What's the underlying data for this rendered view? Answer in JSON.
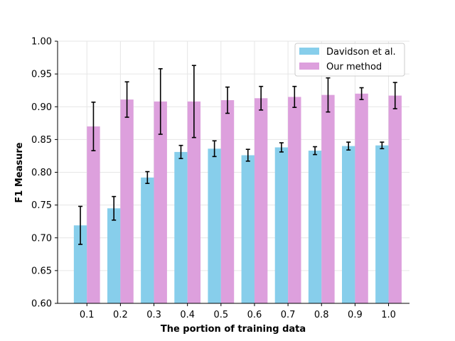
{
  "chart_data": {
    "type": "bar",
    "title": "",
    "xlabel": "The portion of training data",
    "ylabel": "F1 Measure",
    "categories": [
      "0.1",
      "0.2",
      "0.3",
      "0.4",
      "0.5",
      "0.6",
      "0.7",
      "0.8",
      "0.9",
      "1.0"
    ],
    "ylim": [
      0.6,
      1.0
    ],
    "yticks": [
      "0.60",
      "0.65",
      "0.70",
      "0.75",
      "0.80",
      "0.85",
      "0.90",
      "0.95",
      "1.00"
    ],
    "grid": true,
    "legend_position": "top-right",
    "series": [
      {
        "name": "Davidson et al.",
        "color": "#87ceeb",
        "values": [
          0.719,
          0.745,
          0.792,
          0.831,
          0.836,
          0.826,
          0.838,
          0.833,
          0.84,
          0.841
        ],
        "errors": [
          0.029,
          0.018,
          0.009,
          0.01,
          0.012,
          0.009,
          0.007,
          0.006,
          0.006,
          0.005
        ]
      },
      {
        "name": "Our method",
        "color": "#dda0dd",
        "values": [
          0.87,
          0.911,
          0.908,
          0.908,
          0.91,
          0.913,
          0.915,
          0.918,
          0.92,
          0.917
        ],
        "errors": [
          0.037,
          0.027,
          0.05,
          0.055,
          0.02,
          0.018,
          0.016,
          0.026,
          0.009,
          0.02
        ]
      }
    ]
  }
}
